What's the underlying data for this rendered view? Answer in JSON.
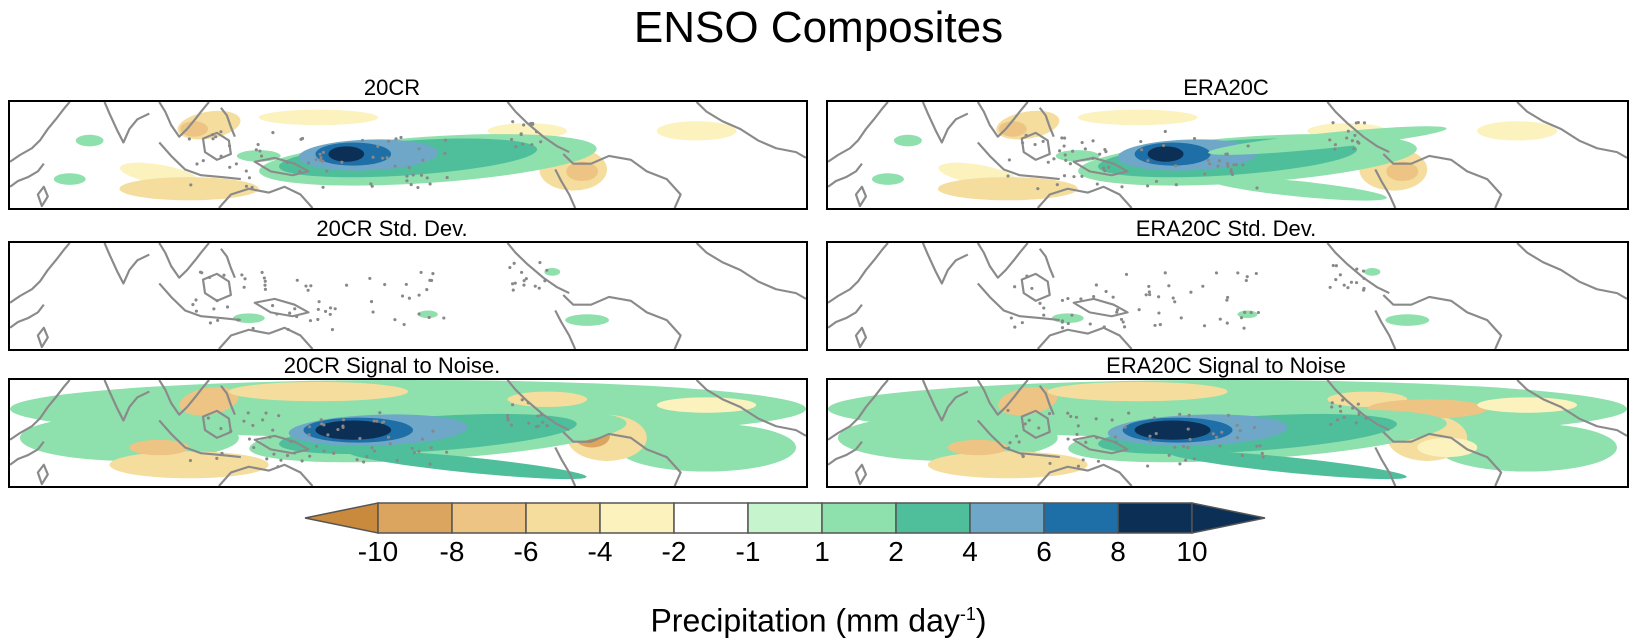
{
  "title": "ENSO Composites",
  "panels": [
    {
      "id": "p1",
      "label": "20CR",
      "pattern": "mean"
    },
    {
      "id": "p2",
      "label": "ERA20C",
      "pattern": "mean"
    },
    {
      "id": "p3",
      "label": "20CR Std. Dev.",
      "pattern": "std"
    },
    {
      "id": "p4",
      "label": "ERA20C Std. Dev.",
      "pattern": "std"
    },
    {
      "id": "p5",
      "label": "20CR Signal to Noise.",
      "pattern": "snr"
    },
    {
      "id": "p6",
      "label": "ERA20C Signal to Noise",
      "pattern": "snr"
    }
  ],
  "colorbar": {
    "levels": [
      "-10",
      "-8",
      "-6",
      "-4",
      "-2",
      "-1",
      "1",
      "2",
      "4",
      "6",
      "8",
      "10"
    ],
    "colors": [
      "#c98a3e",
      "#dca55f",
      "#edc484",
      "#f4dd9d",
      "#fbf2be",
      "#ffffff",
      "#c6f4cd",
      "#8ee0ad",
      "#4fbe9b",
      "#6ea7c8",
      "#1e6ea8",
      "#0b2f55"
    ],
    "label_main": "Precipitation (mm day",
    "label_exp": "-1",
    "label_end": ")"
  }
}
